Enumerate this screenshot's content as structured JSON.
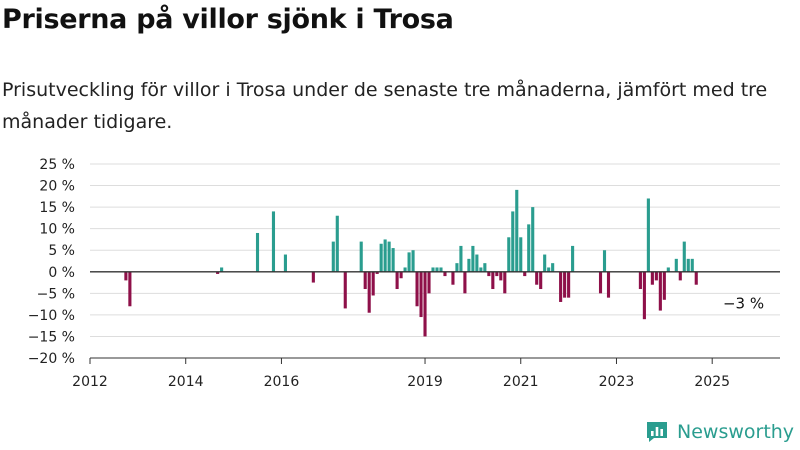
{
  "title": "Priserna på villor sjönk i Trosa",
  "subtitle": "Prisutveckling för villor i Trosa under de senaste tre månaderna, jämfört med tre månader tidigare.",
  "brand": {
    "name": "Newsworthy"
  },
  "colors": {
    "positive": "#2a9d8f",
    "negative": "#8e1049",
    "grid": "#dddddd",
    "zero_line": "#333333"
  },
  "chart_data": {
    "type": "bar",
    "ylim": [
      -20,
      25
    ],
    "y_ticks": [
      25,
      20,
      15,
      10,
      5,
      0,
      -5,
      -10,
      -15,
      -20
    ],
    "y_tick_labels": [
      "25 %",
      "20 %",
      "15 %",
      "10 %",
      "5 %",
      "0 %",
      "−5 %",
      "−10 %",
      "−15 %",
      "−20 %"
    ],
    "x_ticks": [
      "2012",
      "2014",
      "2016",
      "2019",
      "2021",
      "2023",
      "2025"
    ],
    "x_range": [
      "2012-01",
      "2026-06"
    ],
    "annotation": {
      "text": "−3 %",
      "x": "2025-08"
    },
    "grid": true,
    "x": [
      "2012-10",
      "2012-11",
      "2014-09",
      "2014-10",
      "2015-07",
      "2015-11",
      "2016-02",
      "2016-09",
      "2017-02",
      "2017-03",
      "2017-05",
      "2017-09",
      "2017-10",
      "2017-11",
      "2017-12",
      "2018-01",
      "2018-02",
      "2018-03",
      "2018-04",
      "2018-05",
      "2018-06",
      "2018-07",
      "2018-08",
      "2018-09",
      "2018-10",
      "2018-11",
      "2018-12",
      "2019-01",
      "2019-02",
      "2019-03",
      "2019-04",
      "2019-05",
      "2019-06",
      "2019-08",
      "2019-09",
      "2019-10",
      "2019-11",
      "2019-12",
      "2020-01",
      "2020-02",
      "2020-03",
      "2020-04",
      "2020-05",
      "2020-06",
      "2020-07",
      "2020-08",
      "2020-09",
      "2020-10",
      "2020-11",
      "2020-12",
      "2021-01",
      "2021-02",
      "2021-03",
      "2021-04",
      "2021-05",
      "2021-06",
      "2021-07",
      "2021-08",
      "2021-09",
      "2021-10",
      "2021-11",
      "2021-12",
      "2022-01",
      "2022-02",
      "2022-09",
      "2022-10",
      "2022-11",
      "2023-07",
      "2023-08",
      "2023-09",
      "2023-10",
      "2023-11",
      "2023-12",
      "2024-01",
      "2024-02",
      "2024-04",
      "2024-05",
      "2024-06",
      "2024-07",
      "2024-08",
      "2024-09",
      "2024-10",
      "2024-12",
      "2025-03",
      "2025-04",
      "2025-05"
    ],
    "values": [
      -2,
      -8,
      -0.5,
      1,
      9,
      14,
      4,
      -2.5,
      7,
      13,
      -8.5,
      7,
      -4,
      -9.5,
      -5.5,
      -0.5,
      6.5,
      7.5,
      7,
      5.5,
      -4,
      -1.5,
      1,
      4.5,
      5,
      -8,
      -10.5,
      -15,
      -5,
      1,
      1,
      1,
      -1,
      -3,
      2,
      6,
      -5,
      3,
      6,
      4,
      1,
      2,
      -1,
      -4,
      -1,
      -2,
      -5,
      8,
      14,
      19,
      8,
      -1,
      11,
      15,
      -3,
      -4,
      4,
      1,
      2,
      0,
      -7,
      -6,
      -6,
      6,
      -5,
      5,
      -6,
      -4,
      -11,
      17,
      -3,
      -2,
      -9,
      -6.5,
      1,
      3,
      -2,
      7,
      3,
      3,
      -3,
      0,
      0,
      0,
      0,
      0
    ]
  }
}
